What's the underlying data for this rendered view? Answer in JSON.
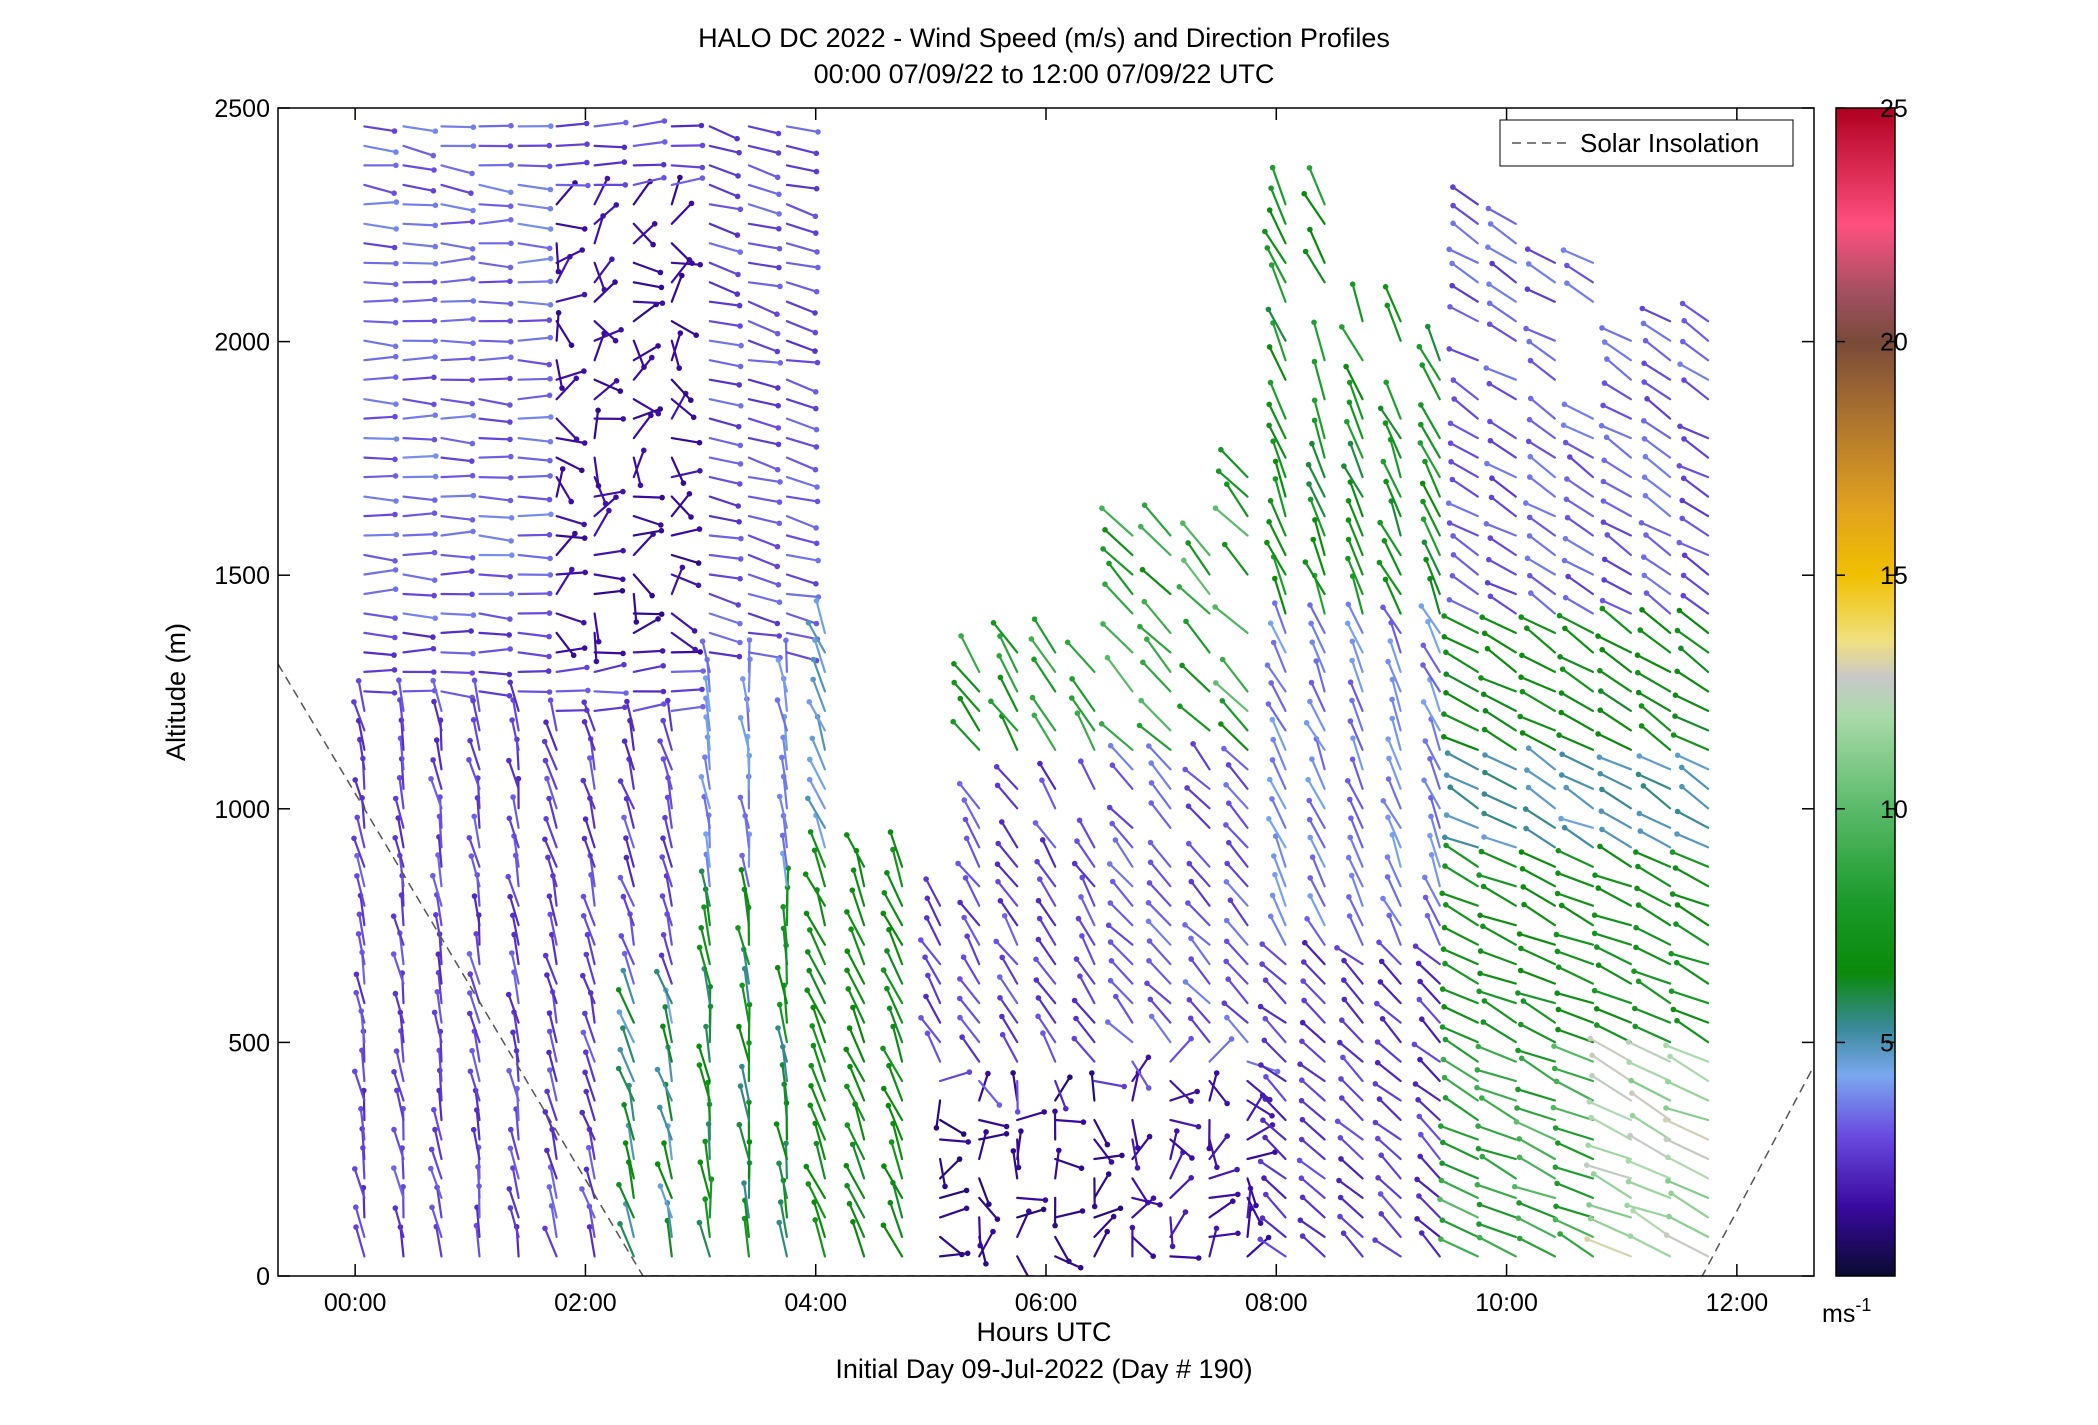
{
  "chart_data": {
    "type": "wind-barb-profile",
    "title": "HALO DC 2022 - Wind Speed (m/s) and Direction Profiles",
    "subtitle": "00:00 07/09/22 to 12:00 07/09/22  UTC",
    "xlabel": "Hours UTC",
    "xlabel2": "Initial Day 09-Jul-2022 (Day # 190)",
    "ylabel": "Altitude (m)",
    "xlim": [
      -0.67,
      12.67
    ],
    "ylim": [
      0,
      2500
    ],
    "x_ticks": [
      {
        "value": 0,
        "label": "00:00"
      },
      {
        "value": 2,
        "label": "02:00"
      },
      {
        "value": 4,
        "label": "04:00"
      },
      {
        "value": 6,
        "label": "06:00"
      },
      {
        "value": 8,
        "label": "08:00"
      },
      {
        "value": 10,
        "label": "10:00"
      },
      {
        "value": 12,
        "label": "12:00"
      }
    ],
    "y_ticks": [
      {
        "value": 0,
        "label": "0"
      },
      {
        "value": 500,
        "label": "500"
      },
      {
        "value": 1000,
        "label": "1000"
      },
      {
        "value": 1500,
        "label": "1500"
      },
      {
        "value": 2000,
        "label": "2000"
      },
      {
        "value": 2500,
        "label": "2500"
      }
    ],
    "colorbar": {
      "range": [
        0,
        25
      ],
      "unit_label": "ms",
      "unit_superscript": "-1",
      "ticks": [
        {
          "value": 5,
          "label": "5"
        },
        {
          "value": 10,
          "label": "10"
        },
        {
          "value": 15,
          "label": "15"
        },
        {
          "value": 20,
          "label": "20"
        },
        {
          "value": 25,
          "label": "25"
        }
      ],
      "stops": [
        {
          "v": 0,
          "color": "#0a0a30"
        },
        {
          "v": 1.5,
          "color": "#3a0aa0"
        },
        {
          "v": 3,
          "color": "#6a4ae0"
        },
        {
          "v": 4.3,
          "color": "#7aa8f0"
        },
        {
          "v": 5.3,
          "color": "#3a8a9a"
        },
        {
          "v": 6.5,
          "color": "#0a8a0a"
        },
        {
          "v": 8,
          "color": "#1a9a2a"
        },
        {
          "v": 10,
          "color": "#5aba6a"
        },
        {
          "v": 12,
          "color": "#aadaaa"
        },
        {
          "v": 12.8,
          "color": "#c8c8c8"
        },
        {
          "v": 13.6,
          "color": "#f0e080"
        },
        {
          "v": 15,
          "color": "#f0c000"
        },
        {
          "v": 16.5,
          "color": "#e0a020"
        },
        {
          "v": 18.5,
          "color": "#a87030"
        },
        {
          "v": 20,
          "color": "#7a4a3a"
        },
        {
          "v": 21,
          "color": "#a05060"
        },
        {
          "v": 22.5,
          "color": "#ff5080"
        },
        {
          "v": 25,
          "color": "#b00020"
        }
      ]
    },
    "legend": {
      "entries": [
        {
          "name": "Solar Insolation",
          "style": "dashed",
          "color": "#555555"
        }
      ],
      "placement": "top-right"
    },
    "solar_insolation": [
      {
        "x": -0.67,
        "y": 1310
      },
      {
        "x": 2.5,
        "y": 0
      },
      {
        "x": 11.7,
        "y": 0
      },
      {
        "x": 12.67,
        "y": 450
      }
    ],
    "profile_times": [
      0.08,
      0.42,
      0.75,
      1.08,
      1.42,
      1.75,
      2.08,
      2.42,
      2.75,
      3.08,
      3.42,
      3.75,
      4.08,
      4.42,
      4.75,
      5.08,
      5.42,
      5.75,
      6.08,
      6.42,
      6.75,
      7.08,
      7.42,
      7.75,
      8.08,
      8.42,
      8.75,
      9.08,
      9.42,
      9.75,
      10.08,
      10.42,
      10.75,
      11.08,
      11.42,
      11.75
    ],
    "altitude_step_m": 41.7,
    "min_altitude_m": 42,
    "speed_unit": "m/s"
  }
}
